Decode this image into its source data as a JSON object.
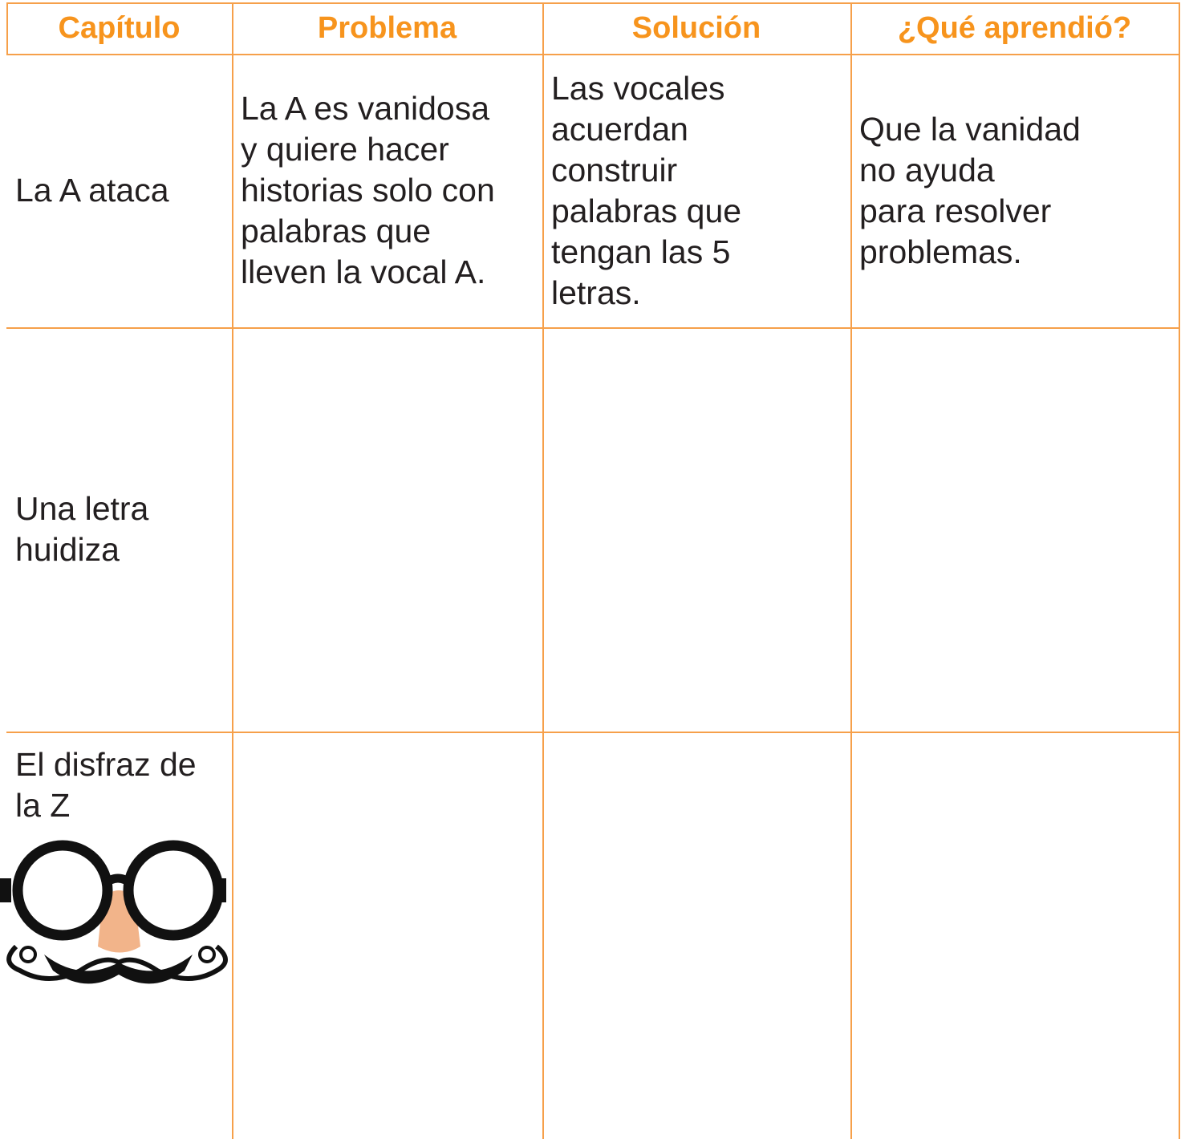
{
  "table": {
    "header": [
      "Capítulo",
      "Problema",
      "Solución",
      "¿Qué aprendió?"
    ],
    "rows": [
      {
        "capitulo": [
          "La A ataca"
        ],
        "problema": [
          "La A es vanidosa",
          "y quiere hacer",
          "historias solo con",
          "palabras que",
          "lleven la vocal A."
        ],
        "solucion": [
          "Las vocales",
          "acuerdan",
          "construir",
          "palabras que",
          "tengan las 5",
          "letras."
        ],
        "aprendio": [
          "Que la vanidad",
          "no ayuda",
          "para resolver",
          "problemas."
        ]
      },
      {
        "capitulo": [
          "Una letra",
          "huidiza"
        ]
      },
      {
        "capitulo": [
          "El disfraz de",
          "la Z"
        ]
      }
    ]
  }
}
